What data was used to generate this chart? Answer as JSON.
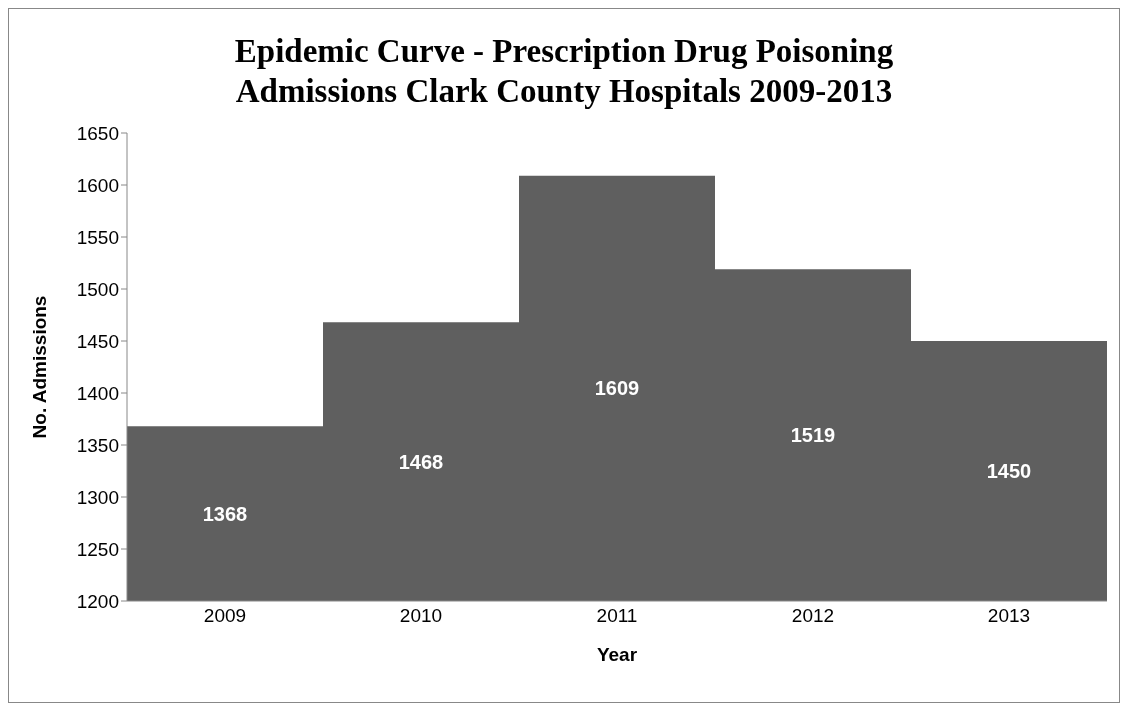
{
  "chart_data": {
    "type": "bar",
    "title": "Epidemic Curve - Prescription Drug Poisoning Admissions Clark County Hospitals 2009-2013",
    "xlabel": "Year",
    "ylabel": "No. Admissions",
    "categories": [
      "2009",
      "2010",
      "2011",
      "2012",
      "2013"
    ],
    "values": [
      1368,
      1468,
      1609,
      1519,
      1450
    ],
    "color": "#5f5f5f",
    "ylim": [
      1200,
      1650
    ],
    "yticks": [
      1200,
      1250,
      1300,
      1350,
      1400,
      1450,
      1500,
      1550,
      1600,
      1650
    ],
    "data_labels": true,
    "grid": false,
    "legend": false
  }
}
